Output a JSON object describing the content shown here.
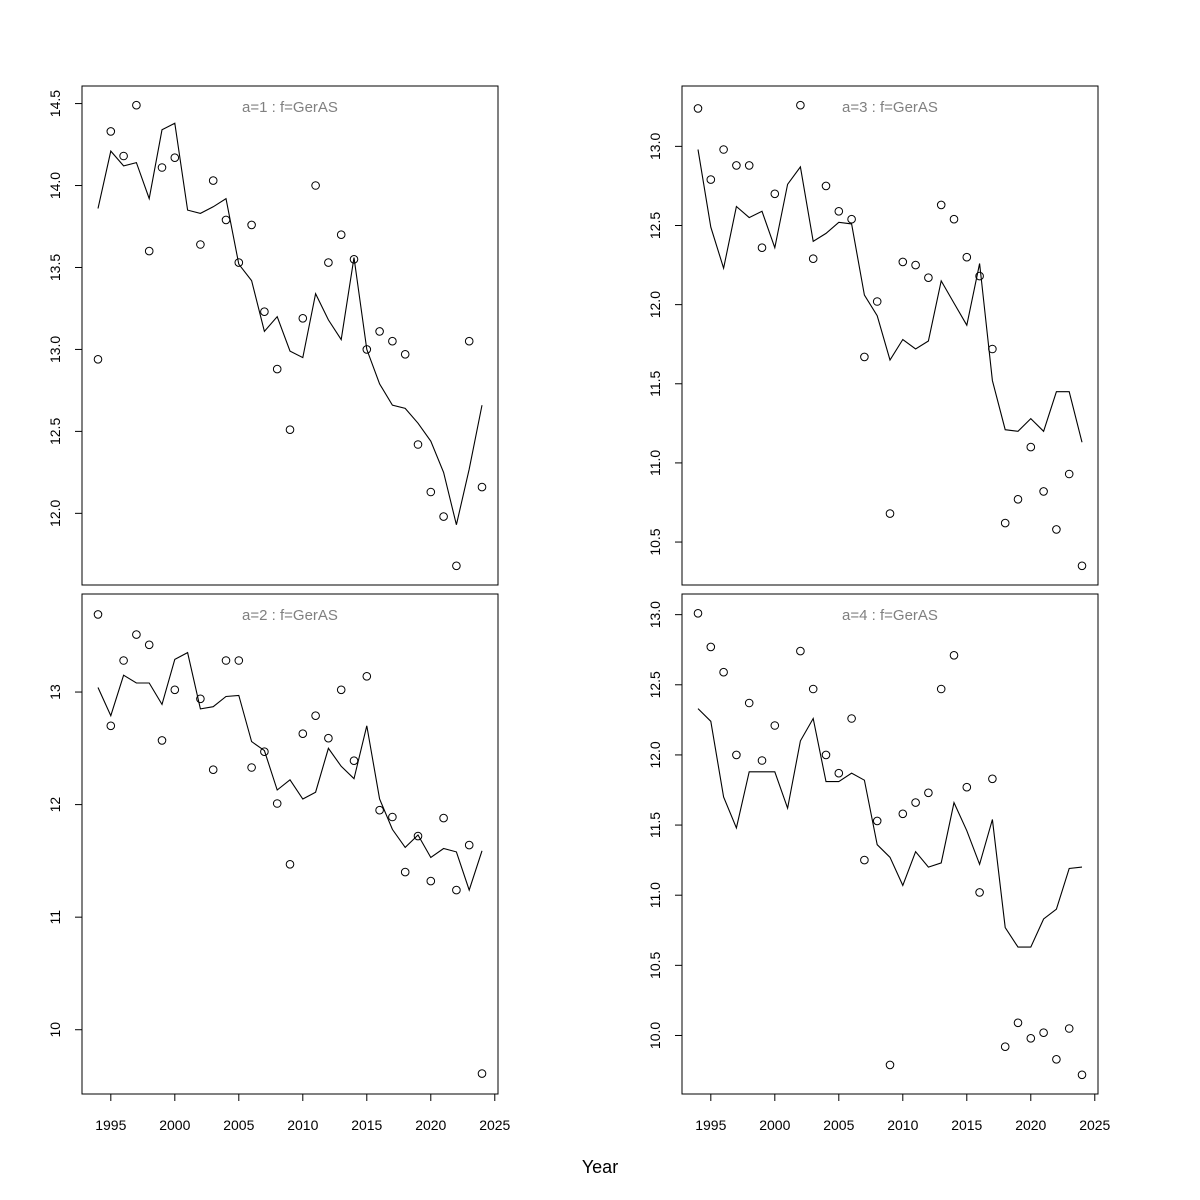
{
  "figure": {
    "xlabel": "Year"
  },
  "chart_data": [
    {
      "type": "scatter",
      "title": "a=1  :  f=GerAS",
      "xlim": [
        1994,
        2024
      ],
      "ylim": [
        11.68,
        14.49
      ],
      "xticks": [
        "1995",
        "2000",
        "2005",
        "2010",
        "2015",
        "2020",
        "2025"
      ],
      "yticks": [
        "12.0",
        "12.5",
        "13.0",
        "13.5",
        "14.0",
        "14.5"
      ],
      "x": [
        1994,
        1995,
        1996,
        1997,
        1998,
        1999,
        2000,
        2001,
        2002,
        2003,
        2004,
        2005,
        2006,
        2007,
        2008,
        2009,
        2010,
        2011,
        2012,
        2013,
        2014,
        2015,
        2016,
        2017,
        2018,
        2019,
        2020,
        2021,
        2022,
        2023,
        2024
      ],
      "series": [
        {
          "style": "points",
          "values": [
            12.94,
            14.33,
            14.18,
            14.49,
            13.6,
            14.11,
            14.17,
            null,
            13.64,
            14.03,
            13.79,
            13.53,
            13.76,
            13.23,
            12.88,
            12.51,
            13.19,
            14.0,
            13.53,
            13.7,
            13.55,
            13.0,
            13.11,
            13.05,
            12.97,
            12.42,
            12.13,
            11.98,
            11.68,
            13.05,
            12.16
          ]
        },
        {
          "style": "line",
          "values": [
            13.86,
            14.21,
            14.12,
            14.14,
            13.92,
            14.34,
            14.38,
            13.85,
            13.83,
            13.87,
            13.92,
            13.52,
            13.42,
            13.11,
            13.2,
            12.99,
            12.95,
            13.34,
            13.18,
            13.06,
            13.56,
            13.0,
            12.79,
            12.66,
            12.64,
            12.55,
            12.44,
            12.25,
            11.93,
            12.27,
            12.66
          ]
        }
      ]
    },
    {
      "type": "scatter",
      "title": "a=2  :  f=GerAS",
      "xlim": [
        1994,
        2024
      ],
      "ylim": [
        9.6,
        13.7
      ],
      "xticks": [
        "1995",
        "2000",
        "2005",
        "2010",
        "2015",
        "2020",
        "2025"
      ],
      "yticks": [
        "10",
        "11",
        "12",
        "13"
      ],
      "x": [
        1994,
        1995,
        1996,
        1997,
        1998,
        1999,
        2000,
        2001,
        2002,
        2003,
        2004,
        2005,
        2006,
        2007,
        2008,
        2009,
        2010,
        2011,
        2012,
        2013,
        2014,
        2015,
        2016,
        2017,
        2018,
        2019,
        2020,
        2021,
        2022,
        2023,
        2024
      ],
      "series": [
        {
          "style": "points",
          "values": [
            13.69,
            12.7,
            13.28,
            13.51,
            13.42,
            12.57,
            13.02,
            null,
            12.94,
            12.31,
            13.28,
            13.28,
            12.33,
            12.47,
            12.01,
            11.47,
            12.63,
            12.79,
            12.59,
            13.02,
            12.39,
            13.14,
            11.95,
            11.89,
            11.4,
            11.72,
            11.32,
            11.88,
            11.24,
            11.64,
            9.61
          ]
        },
        {
          "style": "line",
          "values": [
            13.04,
            12.79,
            13.15,
            13.08,
            13.08,
            12.89,
            13.29,
            13.35,
            12.85,
            12.87,
            12.96,
            12.97,
            12.56,
            12.48,
            12.13,
            12.22,
            12.05,
            12.11,
            12.5,
            12.34,
            12.23,
            12.7,
            12.05,
            11.78,
            11.62,
            11.73,
            11.53,
            11.61,
            11.58,
            11.24,
            11.59
          ]
        }
      ]
    },
    {
      "type": "scatter",
      "title": "a=3  :  f=GerAS",
      "xlim": [
        1994,
        2024
      ],
      "ylim": [
        10.35,
        13.26
      ],
      "xticks": [
        "1995",
        "2000",
        "2005",
        "2010",
        "2015",
        "2020",
        "2025"
      ],
      "yticks": [
        "10.5",
        "11.0",
        "11.5",
        "12.0",
        "12.5",
        "13.0"
      ],
      "x": [
        1994,
        1995,
        1996,
        1997,
        1998,
        1999,
        2000,
        2001,
        2002,
        2003,
        2004,
        2005,
        2006,
        2007,
        2008,
        2009,
        2010,
        2011,
        2012,
        2013,
        2014,
        2015,
        2016,
        2017,
        2018,
        2019,
        2020,
        2021,
        2022,
        2023,
        2024
      ],
      "series": [
        {
          "style": "points",
          "values": [
            13.24,
            12.79,
            12.98,
            12.88,
            12.88,
            12.36,
            12.7,
            null,
            13.26,
            12.29,
            12.75,
            12.59,
            12.54,
            11.67,
            12.02,
            10.68,
            12.27,
            12.25,
            12.17,
            12.63,
            12.54,
            12.3,
            12.18,
            11.72,
            10.62,
            10.77,
            11.1,
            10.82,
            10.58,
            10.93,
            10.35
          ]
        },
        {
          "style": "line",
          "values": [
            12.98,
            12.49,
            12.23,
            12.62,
            12.55,
            12.59,
            12.36,
            12.76,
            12.87,
            12.4,
            12.45,
            12.52,
            12.51,
            12.06,
            11.93,
            11.65,
            11.78,
            11.72,
            11.77,
            12.15,
            12.01,
            11.87,
            12.26,
            11.52,
            11.21,
            11.2,
            11.28,
            11.2,
            11.45,
            11.45,
            11.13
          ]
        }
      ]
    },
    {
      "type": "scatter",
      "title": "a=4  :  f=GerAS",
      "xlim": [
        1994,
        2024
      ],
      "ylim": [
        9.72,
        13.01
      ],
      "xticks": [
        "1995",
        "2000",
        "2005",
        "2010",
        "2015",
        "2020",
        "2025"
      ],
      "yticks": [
        "10.0",
        "10.5",
        "11.0",
        "11.5",
        "12.0",
        "12.5",
        "13.0"
      ],
      "x": [
        1994,
        1995,
        1996,
        1997,
        1998,
        1999,
        2000,
        2001,
        2002,
        2003,
        2004,
        2005,
        2006,
        2007,
        2008,
        2009,
        2010,
        2011,
        2012,
        2013,
        2014,
        2015,
        2016,
        2017,
        2018,
        2019,
        2020,
        2021,
        2022,
        2023,
        2024
      ],
      "series": [
        {
          "style": "points",
          "values": [
            13.01,
            12.77,
            12.59,
            12.0,
            12.37,
            11.96,
            12.21,
            null,
            12.74,
            12.47,
            12.0,
            11.87,
            12.26,
            11.25,
            11.53,
            9.79,
            11.58,
            11.66,
            11.73,
            12.47,
            12.71,
            11.77,
            11.02,
            11.83,
            9.92,
            10.09,
            9.98,
            10.02,
            9.83,
            10.05,
            9.72
          ]
        },
        {
          "style": "line",
          "values": [
            12.33,
            12.24,
            11.7,
            11.48,
            11.88,
            11.88,
            11.88,
            11.62,
            12.1,
            12.26,
            11.81,
            11.81,
            11.87,
            11.82,
            11.36,
            11.27,
            11.07,
            11.31,
            11.2,
            11.23,
            11.66,
            11.46,
            11.22,
            11.54,
            10.77,
            10.63,
            10.63,
            10.83,
            10.9,
            11.19,
            11.2
          ]
        }
      ]
    }
  ]
}
